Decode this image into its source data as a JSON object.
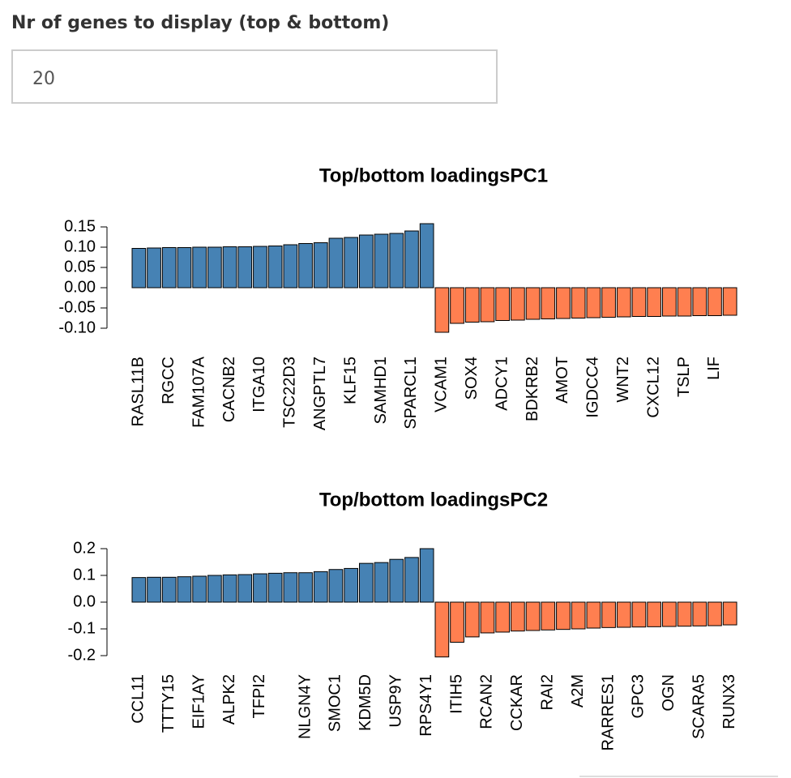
{
  "input": {
    "label": "Nr of genes to display (top & bottom)",
    "value": "20"
  },
  "chart_data": [
    {
      "type": "bar",
      "title": "Top/bottom loadingsPC1",
      "categories": [
        "RASL11B",
        null,
        "RGCC",
        null,
        "FAM107A",
        null,
        "CACNB2",
        null,
        "ITGA10",
        null,
        "TSC22D3",
        null,
        "ANGPTL7",
        null,
        "KLF15",
        null,
        "SAMHD1",
        null,
        "SPARCL1",
        null,
        "VCAM1",
        null,
        "SOX4",
        null,
        "ADCY1",
        null,
        "BDKRB2",
        null,
        "AMOT",
        null,
        "IGDCC4",
        null,
        "WNT2",
        null,
        "CXCL12",
        null,
        "TSLP",
        null,
        "LIF",
        null
      ],
      "values": [
        0.097,
        0.098,
        0.099,
        0.099,
        0.1,
        0.1,
        0.101,
        0.101,
        0.102,
        0.103,
        0.106,
        0.109,
        0.111,
        0.122,
        0.124,
        0.13,
        0.132,
        0.134,
        0.14,
        0.158,
        -0.11,
        -0.088,
        -0.085,
        -0.084,
        -0.081,
        -0.08,
        -0.078,
        -0.077,
        -0.076,
        -0.075,
        -0.074,
        -0.073,
        -0.072,
        -0.071,
        -0.071,
        -0.07,
        -0.07,
        -0.069,
        -0.069,
        -0.068
      ],
      "colors": {
        "positive": "#4682b4",
        "negative": "#ff7f50"
      },
      "ylim": [
        -0.1,
        0.15
      ],
      "yticks": [
        {
          "value": -0.1,
          "label": "-0.10"
        },
        {
          "value": -0.05,
          "label": "-0.05"
        },
        {
          "value": 0,
          "label": "0.00"
        },
        {
          "value": 0.05,
          "label": "0.05"
        },
        {
          "value": 0.1,
          "label": "0.10"
        },
        0.15
      ]
    },
    {
      "type": "bar",
      "title": "Top/bottom loadingsPC2",
      "categories": [
        "CCL11",
        null,
        "TTTY15",
        null,
        "EIF1AY",
        null,
        "ALPK2",
        null,
        "TFPI2",
        null,
        null,
        "NLGN4Y",
        null,
        "SMOC1",
        null,
        "KDM5D",
        null,
        "USP9Y",
        null,
        "RPS4Y1",
        null,
        "ITIH5",
        null,
        "RCAN2",
        null,
        "CCKAR",
        null,
        "RAI2",
        null,
        "A2M",
        null,
        "RARRES1",
        null,
        "GPC3",
        null,
        "OGN",
        null,
        "SCARA5",
        null,
        "RUNX3"
      ],
      "values": [
        0.092,
        0.093,
        0.093,
        0.095,
        0.097,
        0.1,
        0.102,
        0.103,
        0.106,
        0.108,
        0.11,
        0.11,
        0.114,
        0.122,
        0.126,
        0.145,
        0.148,
        0.16,
        0.167,
        0.2,
        -0.205,
        -0.15,
        -0.13,
        -0.115,
        -0.112,
        -0.108,
        -0.106,
        -0.104,
        -0.102,
        -0.1,
        -0.097,
        -0.095,
        -0.094,
        -0.093,
        -0.092,
        -0.091,
        -0.09,
        -0.089,
        -0.088,
        -0.085
      ],
      "colors": {
        "positive": "#4682b4",
        "negative": "#ff7f50"
      },
      "ylim": [
        -0.2,
        0.2
      ],
      "yticks": [
        -0.2,
        -0.1,
        {
          "value": 0,
          "label": "0.0"
        },
        0.1,
        0.2
      ]
    }
  ]
}
